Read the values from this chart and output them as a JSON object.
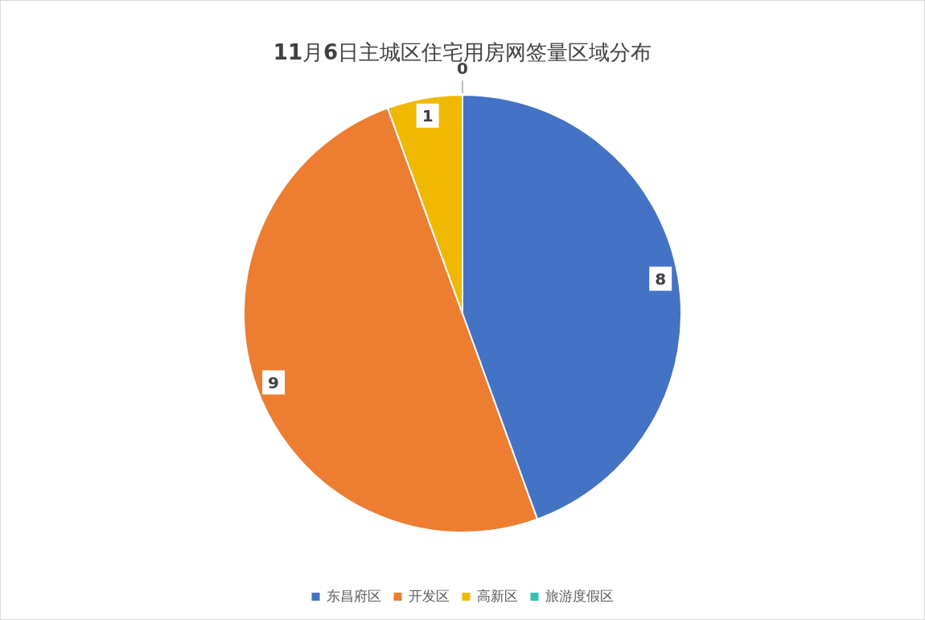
{
  "chart_data": {
    "type": "pie",
    "title": "**11**月**6**日主城区住宅用房网签量区域分布",
    "categories": [
      "东昌府区",
      "开发区",
      "高新区",
      "旅游度假区"
    ],
    "values": [
      8,
      9,
      1,
      0
    ],
    "colors": [
      "#4472c4",
      "#ed7d31",
      "#f0b800",
      "#2ec4b6"
    ],
    "value_labels": [
      "8",
      "9",
      "1",
      "0"
    ],
    "legend": "bottom"
  }
}
